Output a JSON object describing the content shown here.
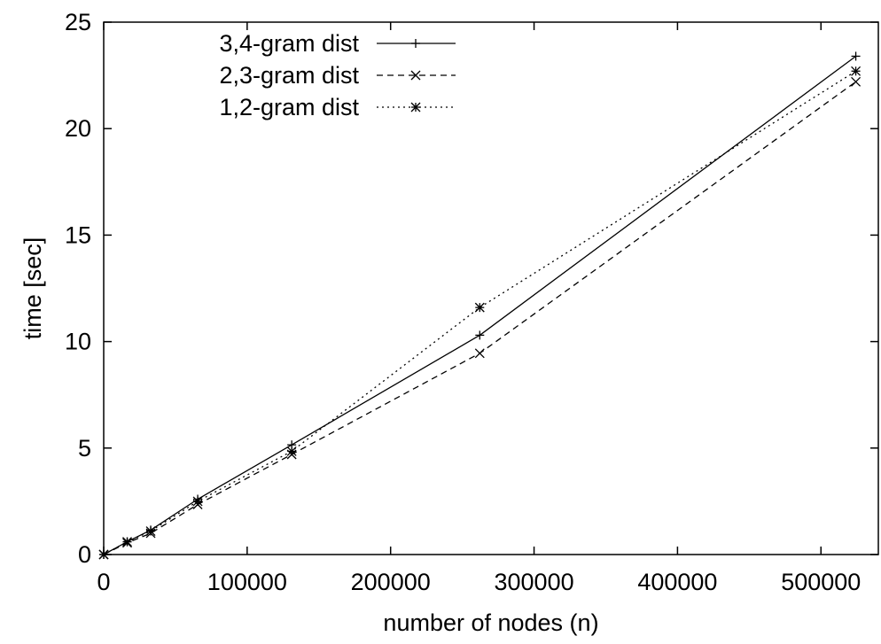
{
  "chart_data": {
    "type": "line",
    "xlabel": "number of nodes (n)",
    "ylabel": "time [sec]",
    "xlim": [
      0,
      540000
    ],
    "ylim": [
      0,
      25
    ],
    "x_ticks": [
      0,
      100000,
      200000,
      300000,
      400000,
      500000
    ],
    "x_tick_labels": [
      "0",
      "100000",
      "200000",
      "300000",
      "400000",
      "500000"
    ],
    "y_ticks": [
      0,
      5,
      10,
      15,
      20,
      25
    ],
    "y_tick_labels": [
      "0",
      "5",
      "10",
      "15",
      "20",
      "25"
    ],
    "grid": false,
    "legend_position": "top-left",
    "series": [
      {
        "name": "3,4-gram dist",
        "line_style": "solid",
        "marker": "plus",
        "color": "#000000",
        "x": [
          0,
          16384,
          32768,
          65536,
          131072,
          262144,
          524288
        ],
        "y": [
          0,
          0.6,
          1.15,
          2.6,
          5.15,
          10.3,
          23.4
        ]
      },
      {
        "name": "2,3-gram dist",
        "line_style": "dashed",
        "marker": "cross",
        "color": "#000000",
        "x": [
          0,
          16384,
          32768,
          65536,
          131072,
          262144,
          524288
        ],
        "y": [
          0,
          0.55,
          1.0,
          2.35,
          4.7,
          9.45,
          22.2
        ]
      },
      {
        "name": "1,2-gram dist",
        "line_style": "dotted",
        "marker": "star",
        "color": "#000000",
        "x": [
          0,
          16384,
          32768,
          65536,
          131072,
          262144,
          524288
        ],
        "y": [
          0,
          0.6,
          1.1,
          2.5,
          4.85,
          11.6,
          22.7
        ]
      }
    ]
  }
}
